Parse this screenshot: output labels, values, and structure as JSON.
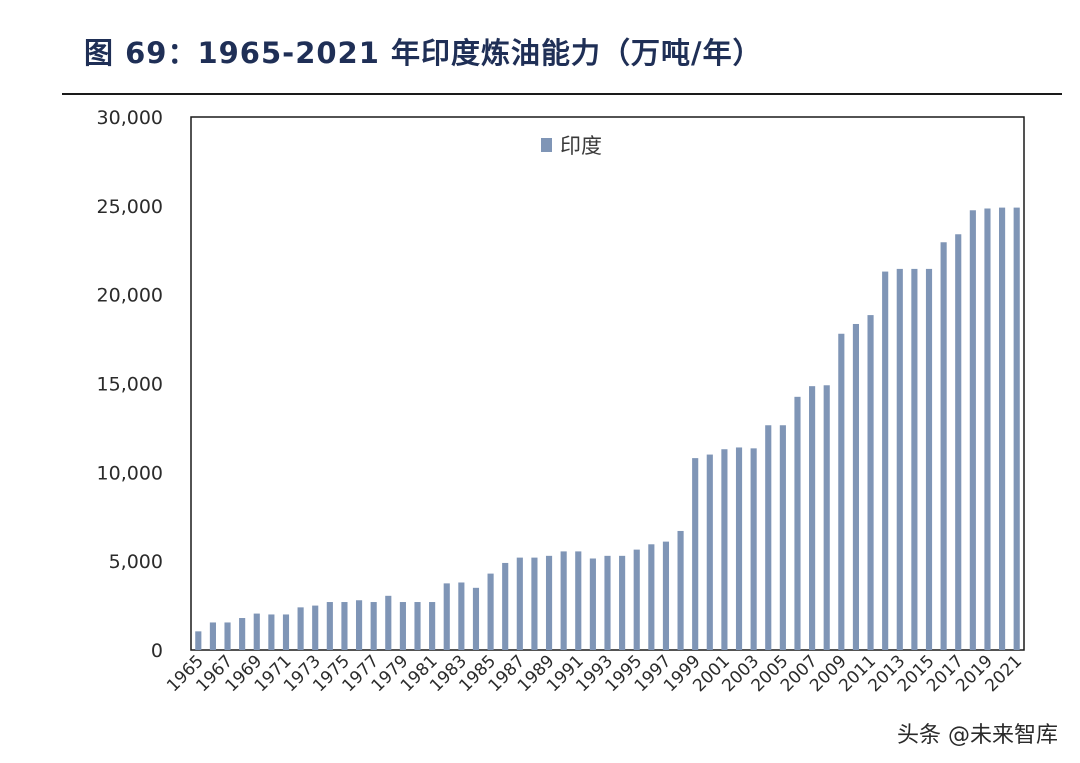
{
  "figure": {
    "title": "图 69：1965-2021 年印度炼油能力（万吨/年）"
  },
  "watermark": "头条 @未来智库",
  "chart_data": {
    "type": "bar",
    "title": "图 69：1965-2021 年印度炼油能力（万吨/年）",
    "xlabel": "",
    "ylabel": "",
    "ylim": [
      0,
      30000
    ],
    "yticks": [
      0,
      5000,
      10000,
      15000,
      20000,
      25000,
      30000
    ],
    "ytick_labels": [
      "0",
      "5,000",
      "10,000",
      "15,000",
      "20,000",
      "25,000",
      "30,000"
    ],
    "grid": false,
    "legend_position": "top-center",
    "bar_color": "#7f95b6",
    "categories": [
      "1965",
      "1966",
      "1967",
      "1968",
      "1969",
      "1970",
      "1971",
      "1972",
      "1973",
      "1974",
      "1975",
      "1976",
      "1977",
      "1978",
      "1979",
      "1980",
      "1981",
      "1982",
      "1983",
      "1984",
      "1985",
      "1986",
      "1987",
      "1988",
      "1989",
      "1990",
      "1991",
      "1992",
      "1993",
      "1994",
      "1995",
      "1996",
      "1997",
      "1998",
      "1999",
      "2000",
      "2001",
      "2002",
      "2003",
      "2004",
      "2005",
      "2006",
      "2007",
      "2008",
      "2009",
      "2010",
      "2011",
      "2012",
      "2013",
      "2014",
      "2015",
      "2016",
      "2017",
      "2018",
      "2019",
      "2020",
      "2021"
    ],
    "tick_labels": [
      "1965",
      "1967",
      "1969",
      "1971",
      "1973",
      "1975",
      "1977",
      "1979",
      "1981",
      "1983",
      "1985",
      "1987",
      "1989",
      "1991",
      "1993",
      "1995",
      "1997",
      "1999",
      "2001",
      "2003",
      "2005",
      "2007",
      "2009",
      "2011",
      "2013",
      "2015",
      "2017",
      "2019",
      "2021"
    ],
    "series": [
      {
        "name": "印度",
        "values": [
          1050,
          1550,
          1550,
          1800,
          2050,
          2000,
          2000,
          2400,
          2500,
          2700,
          2700,
          2800,
          2700,
          3050,
          2700,
          2700,
          2700,
          3750,
          3800,
          3500,
          4300,
          4900,
          5200,
          5200,
          5300,
          5550,
          5550,
          5150,
          5300,
          5300,
          5650,
          5950,
          6100,
          6700,
          10800,
          11000,
          11300,
          11400,
          11350,
          12650,
          12650,
          14250,
          14850,
          14900,
          17800,
          18350,
          18850,
          21300,
          21450,
          21450,
          21450,
          22950,
          23400,
          24750,
          24850,
          24900,
          24900
        ]
      }
    ]
  }
}
